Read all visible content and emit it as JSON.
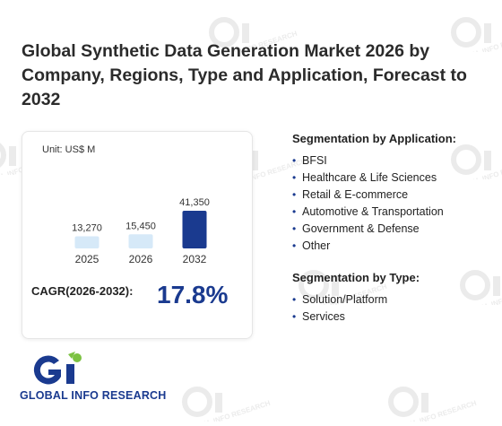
{
  "title": "Global Synthetic Data Generation Market 2026 by Company, Regions, Type and Application, Forecast to 2032",
  "chart_data": {
    "type": "bar",
    "unit_label": "Unit: US$ M",
    "categories": [
      "2025",
      "2026",
      "2032"
    ],
    "values": [
      13270,
      15450,
      41350
    ],
    "value_labels": [
      "13,270",
      "15,450",
      "41,350"
    ],
    "bar_colors": [
      "#d6e9f8",
      "#d6e9f8",
      "#1a3a8f"
    ],
    "ylim": [
      0,
      41350
    ]
  },
  "cagr": {
    "label": "CAGR(2026-2032):",
    "value": "17.8%"
  },
  "segmentation_application": {
    "heading": "Segmentation by Application:",
    "items": [
      "BFSI",
      "Healthcare & Life Sciences",
      "Retail & E-commerce",
      "Automotive & Transportation",
      "Government & Defense",
      "Other"
    ]
  },
  "segmentation_type": {
    "heading": "Segmentation by Type:",
    "items": [
      "Solution/Platform",
      "Services"
    ]
  },
  "logo": {
    "text": "GLOBAL INFO RESEARCH",
    "colors": {
      "primary": "#1a3a8f",
      "accent": "#7cc242"
    }
  },
  "watermark": {
    "text": "GLOBAL INFO RESEARCH"
  }
}
